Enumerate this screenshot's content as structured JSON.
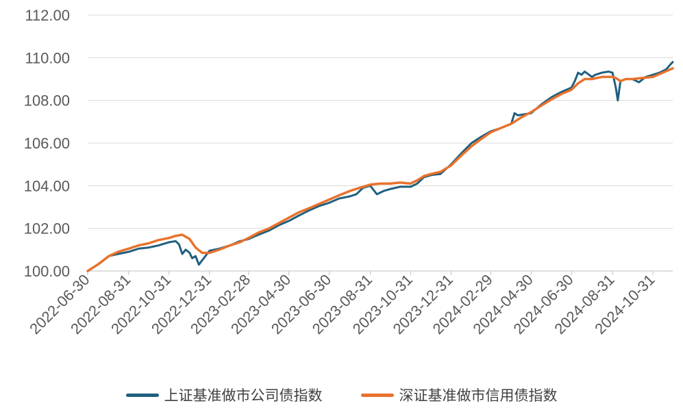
{
  "chart_data": {
    "type": "line",
    "title": "",
    "xlabel": "",
    "ylabel": "",
    "ylim": [
      100,
      112
    ],
    "y_ticks": [
      "100.00",
      "102.00",
      "104.00",
      "106.00",
      "108.00",
      "110.00",
      "112.00"
    ],
    "x_ticks": [
      "2022-06-30",
      "2022-08-31",
      "2022-10-31",
      "2022-12-31",
      "2023-02-28",
      "2023-04-30",
      "2023-06-30",
      "2023-08-31",
      "2023-10-31",
      "2023-12-31",
      "2024-02-29",
      "2024-04-30",
      "2024-06-30",
      "2024-08-31",
      "2024-10-31"
    ],
    "x_range": [
      "2022-06-30",
      "2024-11-30"
    ],
    "grid": "horizontal",
    "legend_position": "bottom",
    "series": [
      {
        "name": "上证基准做市公司债指数",
        "color": "#1f5f7f",
        "points": [
          [
            "2022-06-30",
            100.0
          ],
          [
            "2022-07-10",
            100.2
          ],
          [
            "2022-07-20",
            100.4
          ],
          [
            "2022-08-01",
            100.7
          ],
          [
            "2022-08-15",
            100.8
          ],
          [
            "2022-08-31",
            100.9
          ],
          [
            "2022-09-15",
            101.05
          ],
          [
            "2022-09-30",
            101.1
          ],
          [
            "2022-10-15",
            101.2
          ],
          [
            "2022-10-31",
            101.35
          ],
          [
            "2022-11-10",
            101.4
          ],
          [
            "2022-11-15",
            101.25
          ],
          [
            "2022-11-20",
            100.8
          ],
          [
            "2022-11-25",
            101.0
          ],
          [
            "2022-12-01",
            100.85
          ],
          [
            "2022-12-05",
            100.6
          ],
          [
            "2022-12-10",
            100.7
          ],
          [
            "2022-12-15",
            100.3
          ],
          [
            "2022-12-20",
            100.5
          ],
          [
            "2022-12-31",
            100.95
          ],
          [
            "2023-01-15",
            101.05
          ],
          [
            "2023-01-31",
            101.2
          ],
          [
            "2023-02-15",
            101.4
          ],
          [
            "2023-02-28",
            101.5
          ],
          [
            "2023-03-15",
            101.7
          ],
          [
            "2023-03-31",
            101.9
          ],
          [
            "2023-04-15",
            102.15
          ],
          [
            "2023-04-30",
            102.35
          ],
          [
            "2023-05-15",
            102.6
          ],
          [
            "2023-05-31",
            102.85
          ],
          [
            "2023-06-15",
            103.05
          ],
          [
            "2023-06-30",
            103.2
          ],
          [
            "2023-07-15",
            103.4
          ],
          [
            "2023-07-31",
            103.5
          ],
          [
            "2023-08-10",
            103.6
          ],
          [
            "2023-08-20",
            103.9
          ],
          [
            "2023-08-31",
            104.0
          ],
          [
            "2023-09-05",
            103.8
          ],
          [
            "2023-09-10",
            103.6
          ],
          [
            "2023-09-20",
            103.75
          ],
          [
            "2023-10-01",
            103.85
          ],
          [
            "2023-10-15",
            103.95
          ],
          [
            "2023-10-31",
            103.95
          ],
          [
            "2023-11-10",
            104.1
          ],
          [
            "2023-11-20",
            104.4
          ],
          [
            "2023-12-01",
            104.5
          ],
          [
            "2023-12-15",
            104.55
          ],
          [
            "2023-12-31",
            105.0
          ],
          [
            "2024-01-15",
            105.5
          ],
          [
            "2024-01-31",
            106.0
          ],
          [
            "2024-02-15",
            106.3
          ],
          [
            "2024-02-29",
            106.55
          ],
          [
            "2024-03-15",
            106.7
          ],
          [
            "2024-03-31",
            106.9
          ],
          [
            "2024-04-05",
            107.4
          ],
          [
            "2024-04-10",
            107.3
          ],
          [
            "2024-04-30",
            107.4
          ],
          [
            "2024-05-15",
            107.8
          ],
          [
            "2024-05-31",
            108.15
          ],
          [
            "2024-06-15",
            108.4
          ],
          [
            "2024-06-30",
            108.6
          ],
          [
            "2024-07-05",
            108.9
          ],
          [
            "2024-07-10",
            109.3
          ],
          [
            "2024-07-15",
            109.2
          ],
          [
            "2024-07-20",
            109.35
          ],
          [
            "2024-07-31",
            109.1
          ],
          [
            "2024-08-05",
            109.2
          ],
          [
            "2024-08-15",
            109.3
          ],
          [
            "2024-08-25",
            109.35
          ],
          [
            "2024-08-31",
            109.3
          ],
          [
            "2024-09-05",
            108.6
          ],
          [
            "2024-09-08",
            108.0
          ],
          [
            "2024-09-12",
            108.9
          ],
          [
            "2024-09-20",
            109.0
          ],
          [
            "2024-09-30",
            109.0
          ],
          [
            "2024-10-10",
            108.85
          ],
          [
            "2024-10-20",
            109.1
          ],
          [
            "2024-10-31",
            109.2
          ],
          [
            "2024-11-10",
            109.3
          ],
          [
            "2024-11-20",
            109.45
          ],
          [
            "2024-11-27",
            109.7
          ],
          [
            "2024-11-30",
            109.8
          ]
        ]
      },
      {
        "name": "深证基准做市信用债指数",
        "color": "#e8722c",
        "points": [
          [
            "2022-06-30",
            100.0
          ],
          [
            "2022-07-15",
            100.3
          ],
          [
            "2022-08-01",
            100.7
          ],
          [
            "2022-08-15",
            100.9
          ],
          [
            "2022-08-31",
            101.05
          ],
          [
            "2022-09-15",
            101.2
          ],
          [
            "2022-09-30",
            101.3
          ],
          [
            "2022-10-15",
            101.45
          ],
          [
            "2022-10-31",
            101.55
          ],
          [
            "2022-11-10",
            101.65
          ],
          [
            "2022-11-20",
            101.7
          ],
          [
            "2022-12-01",
            101.5
          ],
          [
            "2022-12-10",
            101.1
          ],
          [
            "2022-12-20",
            100.85
          ],
          [
            "2022-12-31",
            100.85
          ],
          [
            "2023-01-15",
            101.0
          ],
          [
            "2023-01-31",
            101.2
          ],
          [
            "2023-02-15",
            101.35
          ],
          [
            "2023-02-28",
            101.55
          ],
          [
            "2023-03-15",
            101.8
          ],
          [
            "2023-03-31",
            102.0
          ],
          [
            "2023-04-15",
            102.25
          ],
          [
            "2023-04-30",
            102.5
          ],
          [
            "2023-05-15",
            102.75
          ],
          [
            "2023-05-31",
            102.95
          ],
          [
            "2023-06-15",
            103.15
          ],
          [
            "2023-06-30",
            103.35
          ],
          [
            "2023-07-15",
            103.55
          ],
          [
            "2023-07-31",
            103.75
          ],
          [
            "2023-08-15",
            103.9
          ],
          [
            "2023-08-31",
            104.05
          ],
          [
            "2023-09-15",
            104.1
          ],
          [
            "2023-09-30",
            104.1
          ],
          [
            "2023-10-15",
            104.15
          ],
          [
            "2023-10-31",
            104.1
          ],
          [
            "2023-11-10",
            104.25
          ],
          [
            "2023-11-20",
            104.45
          ],
          [
            "2023-12-01",
            104.55
          ],
          [
            "2023-12-15",
            104.65
          ],
          [
            "2023-12-31",
            104.95
          ],
          [
            "2024-01-15",
            105.4
          ],
          [
            "2024-01-31",
            105.85
          ],
          [
            "2024-02-15",
            106.2
          ],
          [
            "2024-02-29",
            106.5
          ],
          [
            "2024-03-15",
            106.7
          ],
          [
            "2024-03-31",
            106.9
          ],
          [
            "2024-04-15",
            107.2
          ],
          [
            "2024-04-30",
            107.45
          ],
          [
            "2024-05-15",
            107.75
          ],
          [
            "2024-05-31",
            108.05
          ],
          [
            "2024-06-15",
            108.3
          ],
          [
            "2024-06-30",
            108.5
          ],
          [
            "2024-07-10",
            108.8
          ],
          [
            "2024-07-20",
            109.0
          ],
          [
            "2024-07-31",
            109.0
          ],
          [
            "2024-08-15",
            109.1
          ],
          [
            "2024-08-31",
            109.1
          ],
          [
            "2024-09-05",
            109.05
          ],
          [
            "2024-09-12",
            108.9
          ],
          [
            "2024-09-20",
            109.0
          ],
          [
            "2024-09-30",
            109.0
          ],
          [
            "2024-10-15",
            109.05
          ],
          [
            "2024-10-31",
            109.1
          ],
          [
            "2024-11-15",
            109.3
          ],
          [
            "2024-11-30",
            109.5
          ]
        ]
      }
    ]
  }
}
